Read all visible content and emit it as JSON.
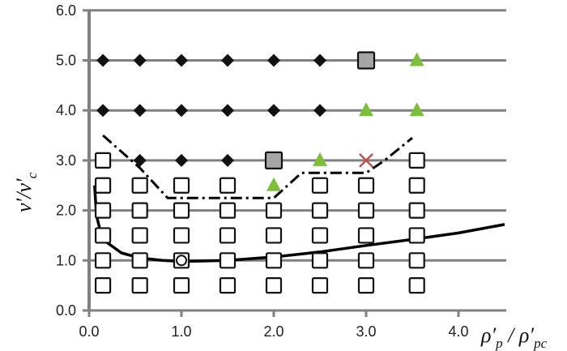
{
  "chart_data": {
    "type": "scatter",
    "xlim": [
      0.0,
      4.5
    ],
    "ylim": [
      0.0,
      6.0
    ],
    "x_ticks": [
      "0.0",
      "1.0",
      "2.0",
      "3.0",
      "4.0"
    ],
    "y_ticks": [
      "0.0",
      "1.0",
      "2.0",
      "3.0",
      "4.0",
      "5.0",
      "6.0"
    ],
    "xlabel": "ρ′p / ρ′pc",
    "ylabel": "v′/v′c",
    "grid": "horizontal",
    "legend": "none",
    "colors": {
      "grid": "#808080",
      "diamond": "#111111",
      "open_square": "#ffffff",
      "gray_square": "#a6a6a6",
      "triangle": "#7dbf3a",
      "cross": "#c0504d",
      "curve": "#000000"
    },
    "series": [
      {
        "marker": "diamond",
        "points": [
          [
            0.15,
            5
          ],
          [
            0.55,
            5
          ],
          [
            1.0,
            5
          ],
          [
            1.5,
            5
          ],
          [
            2.0,
            5
          ],
          [
            2.5,
            5
          ],
          [
            0.15,
            4
          ],
          [
            0.55,
            4
          ],
          [
            1.0,
            4
          ],
          [
            1.5,
            4
          ],
          [
            2.0,
            4
          ],
          [
            2.5,
            4
          ],
          [
            0.55,
            3
          ],
          [
            1.0,
            3
          ],
          [
            1.5,
            3
          ],
          [
            1.0,
            2.5
          ],
          [
            1.5,
            2.5
          ]
        ]
      },
      {
        "marker": "open-square",
        "points": [
          [
            0.15,
            3
          ],
          [
            0.15,
            2.5
          ],
          [
            0.55,
            2.5
          ],
          [
            1.0,
            2.5
          ],
          [
            1.5,
            2.5
          ],
          [
            2.5,
            2.5
          ],
          [
            3.0,
            2.5
          ],
          [
            3.55,
            2.5
          ],
          [
            0.15,
            2
          ],
          [
            0.55,
            2
          ],
          [
            1.0,
            2
          ],
          [
            1.5,
            2
          ],
          [
            2.0,
            2
          ],
          [
            2.5,
            2
          ],
          [
            3.0,
            2
          ],
          [
            3.55,
            2
          ],
          [
            0.15,
            1.5
          ],
          [
            0.55,
            1.5
          ],
          [
            1.0,
            1.5
          ],
          [
            1.5,
            1.5
          ],
          [
            2.0,
            1.5
          ],
          [
            2.5,
            1.5
          ],
          [
            3.0,
            1.5
          ],
          [
            3.55,
            1.5
          ],
          [
            0.15,
            1
          ],
          [
            0.55,
            1
          ],
          [
            1.0,
            1
          ],
          [
            1.5,
            1
          ],
          [
            2.0,
            1
          ],
          [
            2.5,
            1
          ],
          [
            3.0,
            1
          ],
          [
            3.55,
            1
          ],
          [
            0.15,
            0.5
          ],
          [
            0.55,
            0.5
          ],
          [
            1.0,
            0.5
          ],
          [
            1.5,
            0.5
          ],
          [
            2.0,
            0.5
          ],
          [
            2.5,
            0.5
          ],
          [
            3.0,
            0.5
          ],
          [
            3.55,
            0.5
          ],
          [
            3.55,
            3
          ]
        ]
      },
      {
        "marker": "gray-square",
        "points": [
          [
            3.0,
            5
          ],
          [
            2.0,
            3
          ]
        ]
      },
      {
        "marker": "triangle",
        "points": [
          [
            3.55,
            5
          ],
          [
            3.0,
            4
          ],
          [
            3.55,
            4
          ],
          [
            2.5,
            3
          ],
          [
            2.0,
            2.5
          ]
        ]
      },
      {
        "marker": "cross",
        "points": [
          [
            3.0,
            3
          ]
        ]
      },
      {
        "marker": "open-circle",
        "points": [
          [
            1.0,
            1.0
          ]
        ]
      }
    ],
    "curves": [
      {
        "style": "solid",
        "points": [
          [
            0.06,
            2.5
          ],
          [
            0.08,
            1.9
          ],
          [
            0.12,
            1.6
          ],
          [
            0.2,
            1.35
          ],
          [
            0.35,
            1.15
          ],
          [
            0.55,
            1.05
          ],
          [
            0.8,
            1.0
          ],
          [
            1.0,
            0.98
          ],
          [
            1.5,
            1.0
          ],
          [
            2.0,
            1.07
          ],
          [
            2.5,
            1.17
          ],
          [
            3.0,
            1.3
          ],
          [
            3.5,
            1.42
          ],
          [
            4.0,
            1.55
          ],
          [
            4.5,
            1.72
          ]
        ]
      },
      {
        "style": "dash-dot",
        "points": [
          [
            0.15,
            3.5
          ],
          [
            0.55,
            2.85
          ],
          [
            0.85,
            2.25
          ],
          [
            1.0,
            2.25
          ],
          [
            1.5,
            2.25
          ],
          [
            2.0,
            2.25
          ],
          [
            2.3,
            2.75
          ],
          [
            2.5,
            2.75
          ],
          [
            3.0,
            2.75
          ],
          [
            3.2,
            3.0
          ],
          [
            3.5,
            3.45
          ]
        ]
      }
    ]
  }
}
